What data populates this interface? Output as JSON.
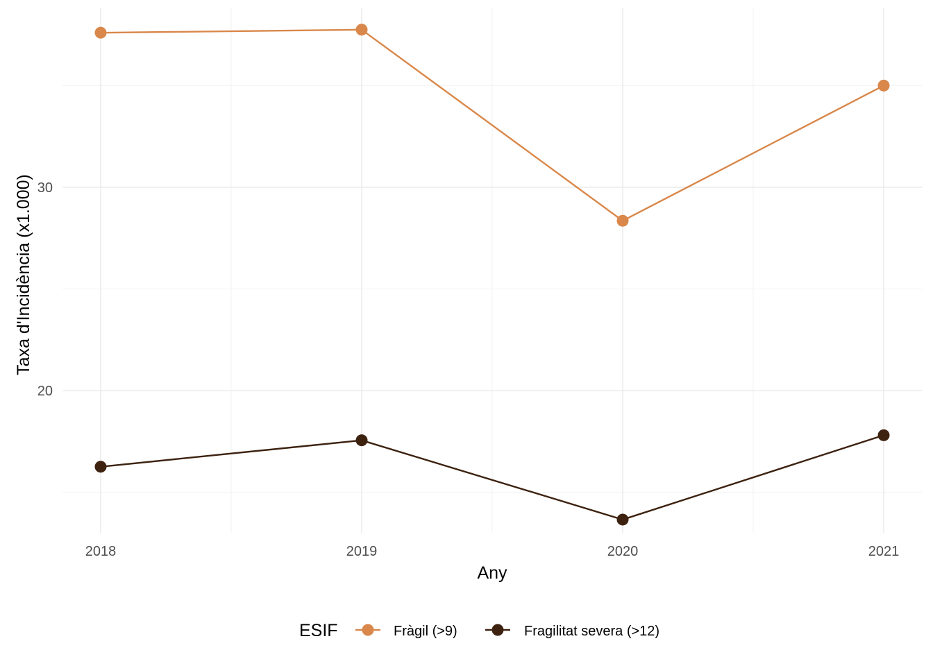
{
  "chart_data": {
    "type": "line",
    "xlabel": "Any",
    "ylabel": "Taxa d'Incidència (x1.000)",
    "x": [
      "2018",
      "2019",
      "2020",
      "2021"
    ],
    "ylim": [
      13.0,
      38.8
    ],
    "y_ticks": [
      20,
      30
    ],
    "grid": true,
    "legend": {
      "title": "ESIF",
      "position": "bottom"
    },
    "series": [
      {
        "name": "Fràgil (>9)",
        "color": "#D9874A",
        "values": [
          37.6,
          37.75,
          28.35,
          35.0
        ]
      },
      {
        "name": "Fragilitat severa (>12)",
        "color": "#3D2210",
        "values": [
          16.25,
          17.55,
          13.65,
          17.8
        ]
      }
    ]
  }
}
